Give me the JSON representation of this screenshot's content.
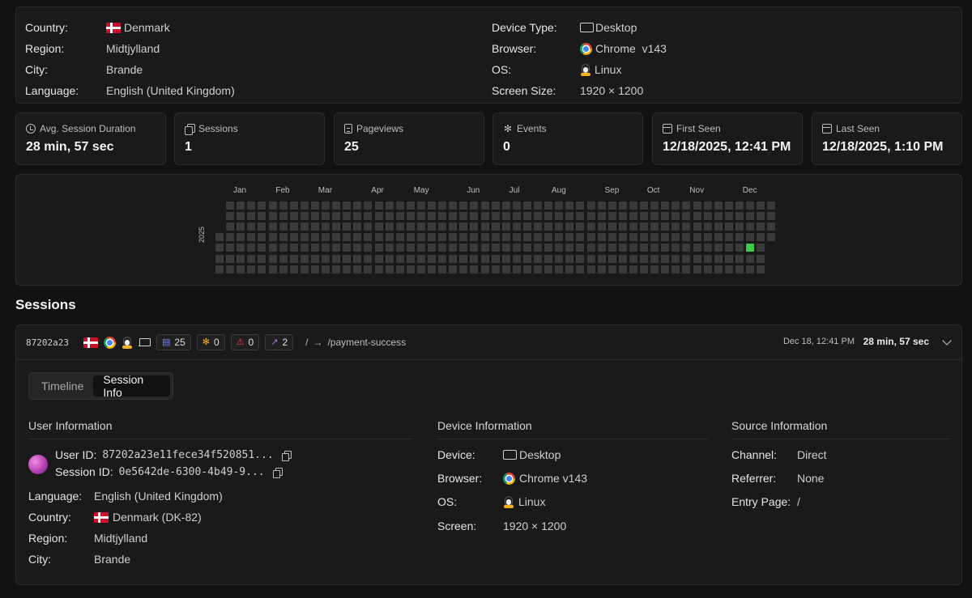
{
  "visitor": {
    "left": [
      {
        "label": "Country:",
        "value": "Denmark",
        "icon": "flag-denmark"
      },
      {
        "label": "Region:",
        "value": "Midtjylland"
      },
      {
        "label": "City:",
        "value": "Brande"
      },
      {
        "label": "Language:",
        "value": "English (United Kingdom)"
      }
    ],
    "right": [
      {
        "label": "Device Type:",
        "value": "Desktop",
        "icon": "monitor-icon"
      },
      {
        "label": "Browser:",
        "value": "Chrome  v143",
        "icon": "chrome-icon"
      },
      {
        "label": "OS:",
        "value": "Linux",
        "icon": "linux-icon"
      },
      {
        "label": "Screen Size:",
        "value": "1920 × 1200"
      }
    ]
  },
  "stats": [
    {
      "label": "Avg. Session Duration",
      "value": "28 min, 57 sec",
      "icon": "clock-icon"
    },
    {
      "label": "Sessions",
      "value": "1",
      "icon": "copy-icon"
    },
    {
      "label": "Pageviews",
      "value": "25",
      "icon": "file-icon"
    },
    {
      "label": "Events",
      "value": "0",
      "icon": "sparkle-icon"
    },
    {
      "label": "First Seen",
      "value": "12/18/2025, 12:41 PM",
      "icon": "calendar-icon"
    },
    {
      "label": "Last Seen",
      "value": "12/18/2025, 1:10 PM",
      "icon": "calendar-icon"
    }
  ],
  "heatmap": {
    "year": "2025",
    "months": [
      "Jan",
      "Feb",
      "Mar",
      "Apr",
      "May",
      "Jun",
      "Jul",
      "Aug",
      "Sep",
      "Oct",
      "Nov",
      "Dec"
    ],
    "active_day": "2025-12-18",
    "active_color": "#3ec94d"
  },
  "sessions": {
    "title": "Sessions",
    "item": {
      "id": "87202a23",
      "pageviews": "25",
      "events": "0",
      "errors": "0",
      "outbound": "2",
      "entry_path": "/",
      "exit_path": "/payment-success",
      "time": "Dec 18, 12:41 PM",
      "duration": "28 min, 57 sec",
      "tabs": [
        "Timeline",
        "Session Info"
      ],
      "active_tab": "Session Info",
      "user_info": {
        "title": "User Information",
        "user_id_label": "User ID:",
        "user_id": "87202a23e11fece34f520851...",
        "session_id_label": "Session ID:",
        "session_id": "0e5642de-6300-4b49-9...",
        "rows": [
          {
            "label": "Language:",
            "value": "English (United Kingdom)"
          },
          {
            "label": "Country:",
            "value": "Denmark (DK-82)"
          },
          {
            "label": "Region:",
            "value": "Midtjylland"
          },
          {
            "label": "City:",
            "value": "Brande"
          }
        ]
      },
      "device_info": {
        "title": "Device Information",
        "rows": [
          {
            "label": "Device:",
            "value": "Desktop"
          },
          {
            "label": "Browser:",
            "value": "Chrome v143"
          },
          {
            "label": "OS:",
            "value": "Linux"
          },
          {
            "label": "Screen:",
            "value": "1920 × 1200"
          }
        ]
      },
      "source_info": {
        "title": "Source Information",
        "rows": [
          {
            "label": "Channel:",
            "value": "Direct"
          },
          {
            "label": "Referrer:",
            "value": "None"
          },
          {
            "label": "Entry Page:",
            "value": "/"
          }
        ]
      }
    }
  }
}
